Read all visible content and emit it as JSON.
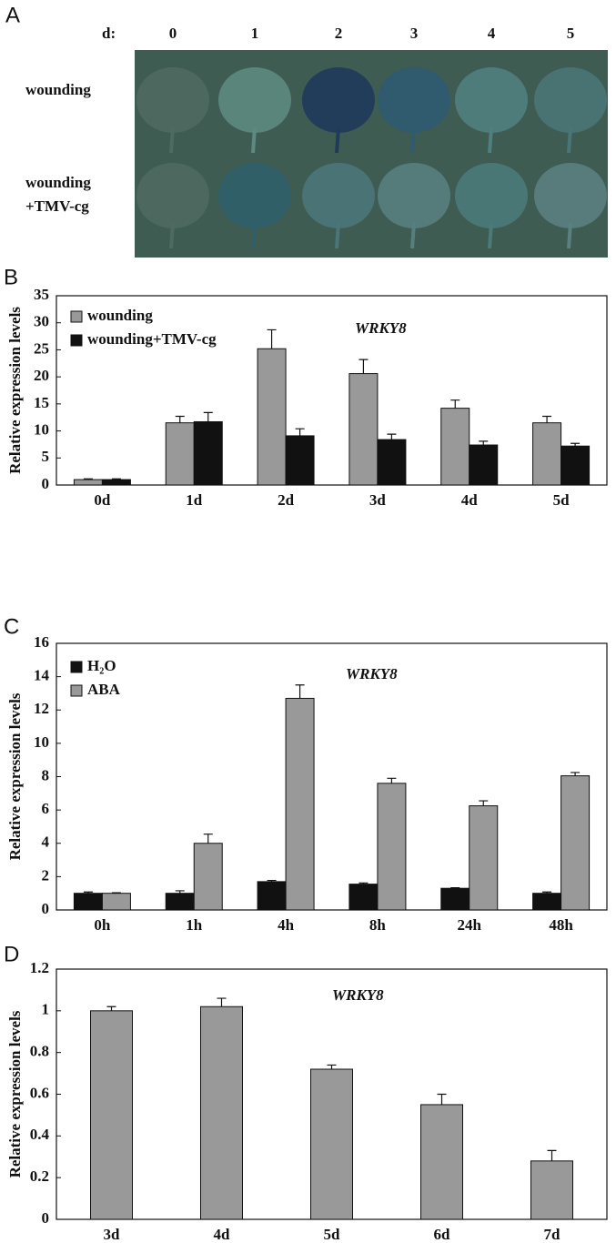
{
  "panel_a": {
    "label": "A",
    "day_prefix": "d:",
    "days": [
      "0",
      "1",
      "2",
      "3",
      "4",
      "5"
    ],
    "rows": [
      {
        "lines": [
          "wounding"
        ]
      },
      {
        "lines": [
          "wounding",
          "+TMV-cg"
        ]
      }
    ]
  },
  "chart_data": [
    {
      "type": "bar",
      "label": "B",
      "title": "WRKY8",
      "y_label": "Relative expression levels",
      "categories": [
        "0d",
        "1d",
        "2d",
        "3d",
        "4d",
        "5d"
      ],
      "series": [
        {
          "name": "wounding",
          "color": "#999999",
          "values": [
            1.0,
            11.5,
            25.2,
            20.6,
            14.2,
            11.5
          ],
          "errors": [
            0.15,
            1.2,
            3.5,
            2.6,
            1.5,
            1.2
          ]
        },
        {
          "name": "wounding+TMV-cg",
          "color": "#111111",
          "values": [
            1.0,
            11.7,
            9.1,
            8.4,
            7.4,
            7.2
          ],
          "errors": [
            0.15,
            1.7,
            1.3,
            1.0,
            0.7,
            0.5
          ]
        }
      ],
      "ylim": [
        0,
        35
      ],
      "yticks": [
        0,
        5,
        10,
        15,
        20,
        25,
        30,
        35
      ],
      "legend": "upper left"
    },
    {
      "type": "bar",
      "label": "C",
      "title": "WRKY8",
      "y_label": "Relative expression levels",
      "categories": [
        "0h",
        "1h",
        "4h",
        "8h",
        "24h",
        "48h"
      ],
      "series": [
        {
          "name": "H₂O",
          "color": "#111111",
          "values": [
            1.0,
            1.0,
            1.7,
            1.55,
            1.3,
            1.0
          ],
          "errors": [
            0.08,
            0.15,
            0.07,
            0.07,
            0.03,
            0.08
          ]
        },
        {
          "name": "ABA",
          "color": "#999999",
          "values": [
            1.0,
            4.0,
            12.7,
            7.6,
            6.25,
            8.05
          ],
          "errors": [
            0.03,
            0.55,
            0.8,
            0.3,
            0.3,
            0.2
          ]
        }
      ],
      "ylim": [
        0,
        16
      ],
      "yticks": [
        0,
        2,
        4,
        6,
        8,
        10,
        12,
        14,
        16
      ],
      "legend": "upper left"
    },
    {
      "type": "bar",
      "label": "D",
      "title": "WRKY8",
      "y_label": "Relative expression levels",
      "categories": [
        "3d",
        "4d",
        "5d",
        "6d",
        "7d"
      ],
      "series": [
        {
          "color": "#999999",
          "values": [
            1.0,
            1.02,
            0.72,
            0.55,
            0.28
          ],
          "errors": [
            0.02,
            0.04,
            0.02,
            0.05,
            0.05
          ]
        }
      ],
      "ylim": [
        0,
        1.2
      ],
      "yticks": [
        0,
        0.2,
        0.4,
        0.6,
        0.8,
        1,
        1.2
      ]
    }
  ]
}
